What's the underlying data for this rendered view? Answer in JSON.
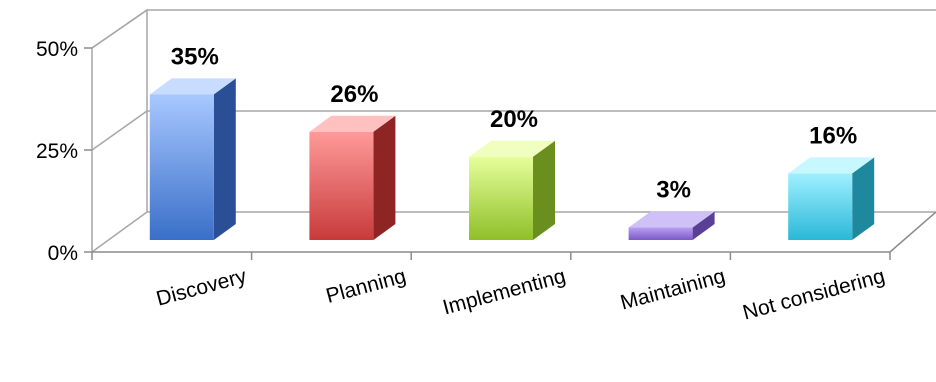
{
  "chart_data": {
    "type": "bar",
    "style": "3d-column",
    "categories": [
      "Discovery",
      "Planning",
      "Implementing",
      "Maintaining",
      "Not considering"
    ],
    "values": [
      35,
      26,
      20,
      3,
      16
    ],
    "value_labels": [
      "35%",
      "26%",
      "20%",
      "3%",
      "16%"
    ],
    "ylim": [
      0,
      50
    ],
    "y_ticks": [
      0,
      25,
      50
    ],
    "y_tick_labels": [
      "0%",
      "25%",
      "50%"
    ],
    "title": "",
    "xlabel": "",
    "ylabel": "",
    "grid": true,
    "legend": "none",
    "colors": [
      {
        "front_top": "#a8c8ff",
        "front_bottom": "#3a6fc8",
        "side": "#2a4f96",
        "top": "#c8dcff"
      },
      {
        "front_top": "#ff9a9a",
        "front_bottom": "#c83a3a",
        "side": "#8f2424",
        "top": "#ffc0c0"
      },
      {
        "front_top": "#e6ff9a",
        "front_bottom": "#8fbf2a",
        "side": "#6a8f1e",
        "top": "#f0ffc0"
      },
      {
        "front_top": "#b9a0f0",
        "front_bottom": "#7a5ac8",
        "side": "#5a3f96",
        "top": "#d0c0f8"
      },
      {
        "front_top": "#a0f0ff",
        "front_bottom": "#2ab8d8",
        "side": "#1e889f",
        "top": "#c8f8ff"
      }
    ],
    "axis_color": "#8c8c8c",
    "grid_color": "#a6a6a6"
  }
}
